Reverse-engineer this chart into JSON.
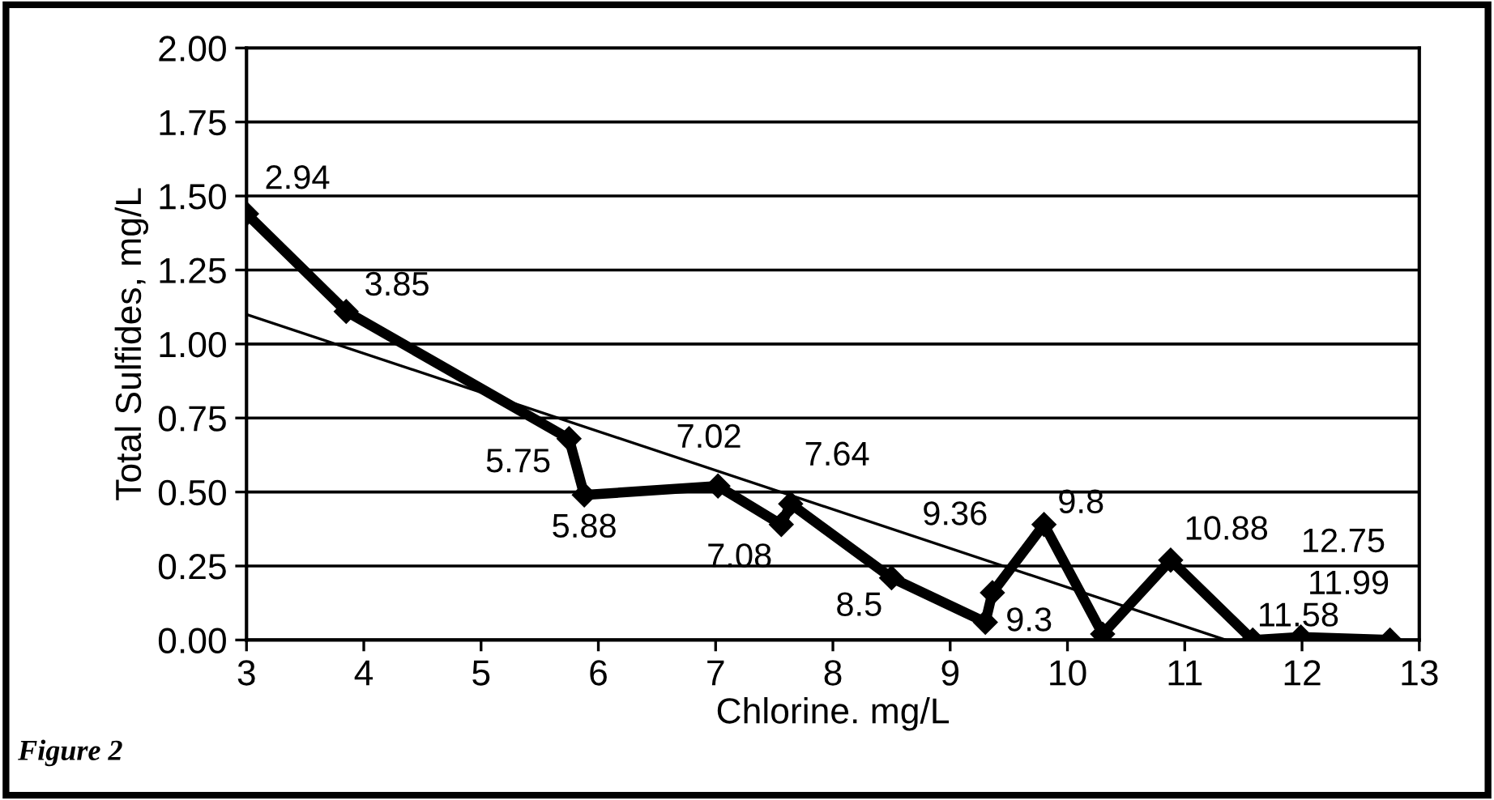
{
  "chart_data": {
    "type": "line",
    "xlabel": "Chlorine. mg/L",
    "ylabel": "Total Sulfides, mg/L",
    "xlim": [
      3,
      13
    ],
    "xticks": [
      3,
      4,
      5,
      6,
      7,
      8,
      9,
      10,
      11,
      12,
      13
    ],
    "ylim": [
      0,
      2
    ],
    "yticks": [
      {
        "value": 0,
        "label": "0.00"
      },
      {
        "value": 0.25,
        "label": "0.25"
      },
      {
        "value": 0.5,
        "label": "0.50"
      },
      {
        "value": 0.75,
        "label": "0.75"
      },
      {
        "value": 1,
        "label": "1.00"
      },
      {
        "value": 1.25,
        "label": "1.25"
      },
      {
        "value": 1.5,
        "label": "1.50"
      },
      {
        "value": 1.75,
        "label": "1.75"
      },
      {
        "value": 2,
        "label": "2.00"
      }
    ],
    "grid": "y",
    "line_style": "solid",
    "series": [
      {
        "color": "#000000",
        "marker": "diamond",
        "x": [
          3.0,
          3.85,
          5.75,
          5.88,
          7.02,
          7.56,
          7.64,
          8.5,
          9.3,
          9.36,
          9.8,
          10.3,
          10.88,
          11.58,
          11.99,
          12.75
        ],
        "values": [
          1.44,
          1.11,
          0.68,
          0.49,
          0.52,
          0.39,
          0.46,
          0.21,
          0.06,
          0.16,
          0.39,
          0.02,
          0.27,
          0.0,
          0.01,
          0.0
        ]
      },
      {
        "color": "#000000",
        "marker": "none",
        "x": [
          3.0,
          11.35
        ],
        "values": [
          1.1,
          0.0
        ]
      }
    ],
    "annotations": [
      {
        "text": "2.94",
        "x": 3.0,
        "y": 1.44
      },
      {
        "text": "3.85",
        "x": 3.85,
        "y": 1.11
      },
      {
        "text": "5.75",
        "x": 5.75,
        "y": 0.68
      },
      {
        "text": "5.88",
        "x": 5.88,
        "y": 0.49
      },
      {
        "text": "7.02",
        "x": 7.02,
        "y": 0.52
      },
      {
        "text": "7.08",
        "x": 7.56,
        "y": 0.39
      },
      {
        "text": "7.64",
        "x": 7.64,
        "y": 0.46
      },
      {
        "text": "8.5",
        "x": 8.5,
        "y": 0.21
      },
      {
        "text": "9.3",
        "x": 9.3,
        "y": 0.06
      },
      {
        "text": "9.36",
        "x": 9.36,
        "y": 0.16
      },
      {
        "text": "9.8",
        "x": 9.8,
        "y": 0.39
      },
      {
        "text": "10.88",
        "x": 10.88,
        "y": 0.27
      },
      {
        "text": "11.58",
        "x": 11.58,
        "y": 0.0
      },
      {
        "text": "11.99",
        "x": 11.99,
        "y": 0.01
      },
      {
        "text": "12.75",
        "x": 12.75,
        "y": 0.0
      },
      "Figure 2"
    ]
  }
}
